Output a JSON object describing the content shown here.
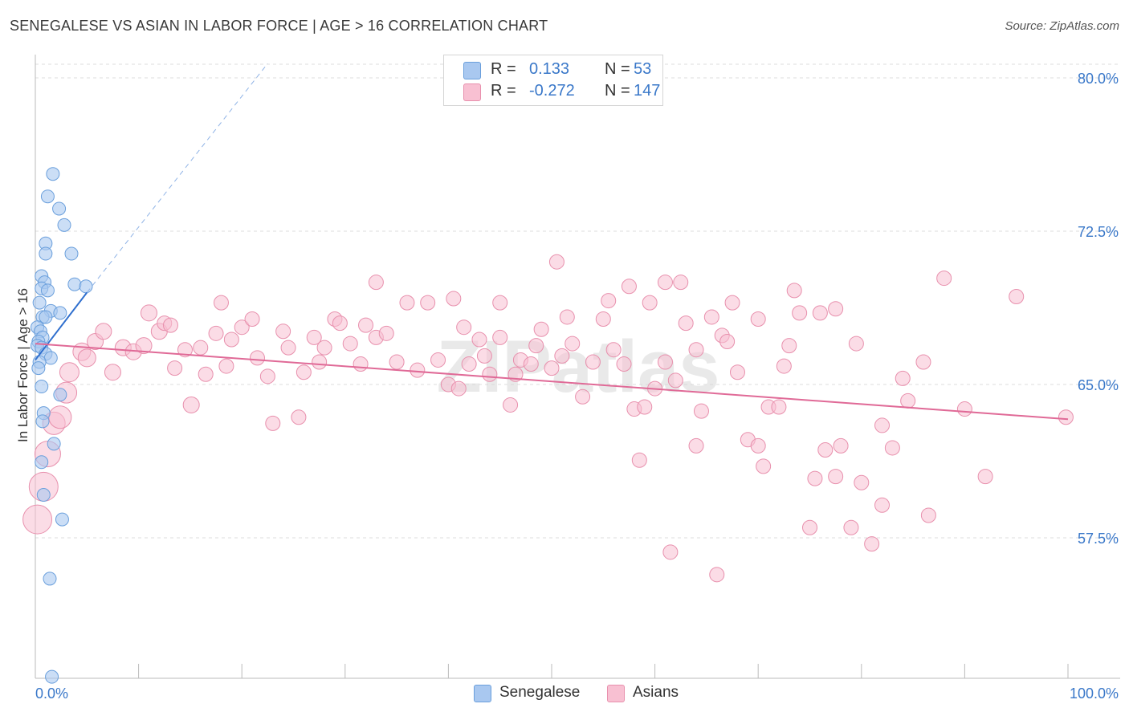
{
  "title": "SENEGALESE VS ASIAN IN LABOR FORCE | AGE > 16 CORRELATION CHART",
  "source": "Source: ZipAtlas.com",
  "watermark": "ZIPatlas",
  "legend": {
    "rows": [
      {
        "r_label": "R =",
        "r_value": "0.133",
        "n_label": "N =",
        "n_value": "53",
        "color": "#a9c8f0",
        "border": "#6a9fdc"
      },
      {
        "r_label": "R =",
        "r_value": "-0.272",
        "n_label": "N =",
        "n_value": "147",
        "color": "#f8c0d2",
        "border": "#e890ad"
      }
    ]
  },
  "bottom_legend": [
    {
      "label": "Senegalese",
      "color": "#a9c8f0",
      "border": "#6a9fdc"
    },
    {
      "label": "Asians",
      "color": "#f8c0d2",
      "border": "#e890ad"
    }
  ],
  "chart_data": {
    "type": "scatter",
    "title": "SENEGALESE VS ASIAN IN LABOR FORCE | AGE > 16 CORRELATION CHART",
    "xlabel": "",
    "ylabel": "In Labor Force | Age > 16",
    "xlim": [
      0,
      100
    ],
    "ylim": [
      50.0,
      82.0
    ],
    "x_tick_labels": [
      "0.0%",
      "100.0%"
    ],
    "y_ticks": [
      57.5,
      65.0,
      72.5,
      80.0
    ],
    "y_tick_labels": [
      "57.5%",
      "65.0%",
      "72.5%",
      "80.0%"
    ],
    "grid": true,
    "legend_position": "top-center",
    "colors": {
      "senegalese": "#6a9fdc",
      "asians": "#e890ad",
      "senegalese_line": "#2f6fce",
      "asians_line": "#e06a97",
      "tick_label": "#3a78c9"
    },
    "series": [
      {
        "name": "Senegalese",
        "trend": {
          "x0": 0,
          "y0": 66.2,
          "x1": 5,
          "y1": 69.5,
          "dashed_to_x": 22.5,
          "dashed_to_y": 80.7
        },
        "points": [
          {
            "x": 1.7,
            "y": 75.3
          },
          {
            "x": 1.2,
            "y": 74.2
          },
          {
            "x": 2.3,
            "y": 73.6
          },
          {
            "x": 2.8,
            "y": 72.8
          },
          {
            "x": 1.0,
            "y": 71.9
          },
          {
            "x": 1.0,
            "y": 71.4
          },
          {
            "x": 3.5,
            "y": 71.4
          },
          {
            "x": 0.6,
            "y": 70.3
          },
          {
            "x": 0.9,
            "y": 70.0
          },
          {
            "x": 3.8,
            "y": 69.9
          },
          {
            "x": 4.9,
            "y": 69.8
          },
          {
            "x": 0.6,
            "y": 69.7
          },
          {
            "x": 1.2,
            "y": 69.6
          },
          {
            "x": 0.4,
            "y": 69.0
          },
          {
            "x": 1.5,
            "y": 68.6
          },
          {
            "x": 2.4,
            "y": 68.5
          },
          {
            "x": 0.7,
            "y": 68.3
          },
          {
            "x": 1.0,
            "y": 68.3
          },
          {
            "x": 0.2,
            "y": 67.8
          },
          {
            "x": 0.5,
            "y": 67.6
          },
          {
            "x": 0.7,
            "y": 67.3
          },
          {
            "x": 0.3,
            "y": 67.1
          },
          {
            "x": 0.2,
            "y": 66.9
          },
          {
            "x": 0.6,
            "y": 66.8
          },
          {
            "x": 1.0,
            "y": 66.5
          },
          {
            "x": 1.5,
            "y": 66.3
          },
          {
            "x": 0.4,
            "y": 66.1
          },
          {
            "x": 0.3,
            "y": 65.8
          },
          {
            "x": 0.6,
            "y": 64.9
          },
          {
            "x": 2.4,
            "y": 64.5
          },
          {
            "x": 0.8,
            "y": 63.6
          },
          {
            "x": 0.7,
            "y": 63.2
          },
          {
            "x": 1.8,
            "y": 62.1
          },
          {
            "x": 0.6,
            "y": 61.2
          },
          {
            "x": 0.8,
            "y": 59.6
          },
          {
            "x": 2.6,
            "y": 58.4
          },
          {
            "x": 1.4,
            "y": 55.5
          },
          {
            "x": 1.6,
            "y": 50.7
          }
        ]
      },
      {
        "name": "Asians",
        "trend": {
          "x0": 0,
          "y0": 67.0,
          "x1": 100,
          "y1": 63.3
        },
        "points": [
          {
            "x": 0.2,
            "y": 58.4,
            "r": 18
          },
          {
            "x": 0.8,
            "y": 60.0,
            "r": 18
          },
          {
            "x": 1.2,
            "y": 61.6,
            "r": 16
          },
          {
            "x": 1.8,
            "y": 63.1,
            "r": 14
          },
          {
            "x": 2.4,
            "y": 63.4,
            "r": 14
          },
          {
            "x": 3.0,
            "y": 64.6,
            "r": 13
          },
          {
            "x": 3.3,
            "y": 65.6,
            "r": 12
          },
          {
            "x": 4.5,
            "y": 66.6,
            "r": 11
          },
          {
            "x": 5.0,
            "y": 66.3,
            "r": 11
          },
          {
            "x": 5.8,
            "y": 67.1,
            "r": 10
          },
          {
            "x": 6.6,
            "y": 67.6,
            "r": 10
          },
          {
            "x": 7.5,
            "y": 65.6,
            "r": 10
          },
          {
            "x": 8.5,
            "y": 66.8,
            "r": 10
          },
          {
            "x": 9.5,
            "y": 66.6,
            "r": 10
          },
          {
            "x": 10.5,
            "y": 66.9,
            "r": 10
          },
          {
            "x": 11.0,
            "y": 68.5,
            "r": 10
          },
          {
            "x": 12.0,
            "y": 67.6,
            "r": 10
          },
          {
            "x": 12.5,
            "y": 68.0,
            "r": 9
          },
          {
            "x": 13.1,
            "y": 67.9,
            "r": 9
          },
          {
            "x": 13.5,
            "y": 65.8,
            "r": 9
          },
          {
            "x": 14.5,
            "y": 66.7,
            "r": 9
          },
          {
            "x": 15.1,
            "y": 64.0,
            "r": 10
          },
          {
            "x": 16.0,
            "y": 66.8,
            "r": 9
          },
          {
            "x": 16.5,
            "y": 65.5,
            "r": 9
          },
          {
            "x": 17.5,
            "y": 67.5,
            "r": 9
          },
          {
            "x": 18.0,
            "y": 69.0,
            "r": 9
          },
          {
            "x": 18.5,
            "y": 65.9,
            "r": 9
          },
          {
            "x": 19.0,
            "y": 67.2,
            "r": 9
          },
          {
            "x": 20.0,
            "y": 67.8,
            "r": 9
          },
          {
            "x": 21.0,
            "y": 68.2,
            "r": 9
          },
          {
            "x": 21.5,
            "y": 66.3,
            "r": 9
          },
          {
            "x": 22.5,
            "y": 65.4,
            "r": 9
          },
          {
            "x": 23.0,
            "y": 63.1,
            "r": 9
          },
          {
            "x": 24.0,
            "y": 67.6,
            "r": 9
          },
          {
            "x": 24.5,
            "y": 66.8,
            "r": 9
          },
          {
            "x": 25.5,
            "y": 63.4,
            "r": 9
          },
          {
            "x": 26.0,
            "y": 65.6,
            "r": 9
          },
          {
            "x": 27.0,
            "y": 67.3,
            "r": 9
          },
          {
            "x": 27.5,
            "y": 66.1,
            "r": 9
          },
          {
            "x": 28.0,
            "y": 66.8,
            "r": 9
          },
          {
            "x": 29.0,
            "y": 68.2,
            "r": 9
          },
          {
            "x": 29.5,
            "y": 68.0,
            "r": 9
          },
          {
            "x": 30.5,
            "y": 67.0,
            "r": 9
          },
          {
            "x": 31.5,
            "y": 66.0,
            "r": 9
          },
          {
            "x": 32.0,
            "y": 67.9,
            "r": 9
          },
          {
            "x": 33.0,
            "y": 67.3,
            "r": 9
          },
          {
            "x": 34.0,
            "y": 67.5,
            "r": 9
          },
          {
            "x": 35.0,
            "y": 66.1,
            "r": 9
          },
          {
            "x": 36.0,
            "y": 69.0,
            "r": 9
          },
          {
            "x": 37.0,
            "y": 65.7,
            "r": 9
          },
          {
            "x": 38.0,
            "y": 69.0,
            "r": 9
          },
          {
            "x": 39.0,
            "y": 66.2,
            "r": 9
          },
          {
            "x": 40.0,
            "y": 65.0,
            "r": 9
          },
          {
            "x": 41.0,
            "y": 64.8,
            "r": 9
          },
          {
            "x": 41.5,
            "y": 67.8,
            "r": 9
          },
          {
            "x": 42.0,
            "y": 66.0,
            "r": 9
          },
          {
            "x": 43.0,
            "y": 67.2,
            "r": 9
          },
          {
            "x": 43.5,
            "y": 66.4,
            "r": 9
          },
          {
            "x": 44.0,
            "y": 65.5,
            "r": 9
          },
          {
            "x": 45.0,
            "y": 67.3,
            "r": 9
          },
          {
            "x": 46.0,
            "y": 64.0,
            "r": 9
          },
          {
            "x": 46.5,
            "y": 65.5,
            "r": 9
          },
          {
            "x": 47.0,
            "y": 66.2,
            "r": 9
          },
          {
            "x": 48.0,
            "y": 66.0,
            "r": 9
          },
          {
            "x": 48.5,
            "y": 66.9,
            "r": 9
          },
          {
            "x": 49.0,
            "y": 67.7,
            "r": 9
          },
          {
            "x": 50.0,
            "y": 65.8,
            "r": 9
          },
          {
            "x": 51.0,
            "y": 66.4,
            "r": 9
          },
          {
            "x": 51.5,
            "y": 68.3,
            "r": 9
          },
          {
            "x": 52.0,
            "y": 67.0,
            "r": 9
          },
          {
            "x": 53.0,
            "y": 64.4,
            "r": 9
          },
          {
            "x": 54.0,
            "y": 66.1,
            "r": 9
          },
          {
            "x": 55.0,
            "y": 68.2,
            "r": 9
          },
          {
            "x": 56.0,
            "y": 66.7,
            "r": 9
          },
          {
            "x": 57.0,
            "y": 66.0,
            "r": 9
          },
          {
            "x": 58.0,
            "y": 63.8,
            "r": 9
          },
          {
            "x": 58.5,
            "y": 61.3,
            "r": 9
          },
          {
            "x": 59.0,
            "y": 63.9,
            "r": 9
          },
          {
            "x": 60.0,
            "y": 64.8,
            "r": 9
          },
          {
            "x": 61.0,
            "y": 66.1,
            "r": 9
          },
          {
            "x": 62.0,
            "y": 65.2,
            "r": 9
          },
          {
            "x": 63.0,
            "y": 68.0,
            "r": 9
          },
          {
            "x": 64.0,
            "y": 66.7,
            "r": 9
          },
          {
            "x": 64.5,
            "y": 63.7,
            "r": 9
          },
          {
            "x": 65.5,
            "y": 68.3,
            "r": 9
          },
          {
            "x": 66.5,
            "y": 67.4,
            "r": 9
          },
          {
            "x": 67.0,
            "y": 67.1,
            "r": 9
          },
          {
            "x": 68.0,
            "y": 65.6,
            "r": 9
          },
          {
            "x": 69.0,
            "y": 62.3,
            "r": 9
          },
          {
            "x": 70.0,
            "y": 62.0,
            "r": 9
          },
          {
            "x": 70.5,
            "y": 61.0,
            "r": 9
          },
          {
            "x": 71.0,
            "y": 63.9,
            "r": 9
          },
          {
            "x": 72.5,
            "y": 65.9,
            "r": 9
          },
          {
            "x": 73.0,
            "y": 66.9,
            "r": 9
          },
          {
            "x": 74.0,
            "y": 68.5,
            "r": 9
          },
          {
            "x": 75.5,
            "y": 60.4,
            "r": 9
          },
          {
            "x": 76.5,
            "y": 61.8,
            "r": 9
          },
          {
            "x": 77.5,
            "y": 60.5,
            "r": 9
          },
          {
            "x": 78.0,
            "y": 62.0,
            "r": 9
          },
          {
            "x": 79.0,
            "y": 58.0,
            "r": 9
          },
          {
            "x": 80.0,
            "y": 60.2,
            "r": 9
          },
          {
            "x": 81.0,
            "y": 57.2,
            "r": 9
          },
          {
            "x": 82.0,
            "y": 59.1,
            "r": 9
          },
          {
            "x": 83.0,
            "y": 61.9,
            "r": 9
          },
          {
            "x": 84.0,
            "y": 65.3,
            "r": 9
          },
          {
            "x": 84.5,
            "y": 64.2,
            "r": 9
          },
          {
            "x": 86.5,
            "y": 58.6,
            "r": 9
          },
          {
            "x": 88.0,
            "y": 70.2,
            "r": 9
          },
          {
            "x": 90.0,
            "y": 63.8,
            "r": 9
          },
          {
            "x": 95.0,
            "y": 69.3,
            "r": 9
          },
          {
            "x": 99.8,
            "y": 63.4,
            "r": 9
          },
          {
            "x": 92.0,
            "y": 60.5,
            "r": 9
          },
          {
            "x": 86.0,
            "y": 66.1,
            "r": 9
          },
          {
            "x": 79.5,
            "y": 67.0,
            "r": 9
          },
          {
            "x": 72.0,
            "y": 63.9,
            "r": 9
          },
          {
            "x": 62.5,
            "y": 70.0,
            "r": 9
          },
          {
            "x": 57.5,
            "y": 69.8,
            "r": 9
          },
          {
            "x": 50.5,
            "y": 71.0,
            "r": 9
          },
          {
            "x": 55.5,
            "y": 69.1,
            "r": 9
          },
          {
            "x": 67.5,
            "y": 69.0,
            "r": 9
          },
          {
            "x": 70.0,
            "y": 68.2,
            "r": 9
          },
          {
            "x": 77.5,
            "y": 68.7,
            "r": 9
          },
          {
            "x": 33.0,
            "y": 70.0,
            "r": 9
          },
          {
            "x": 40.5,
            "y": 69.2,
            "r": 9
          },
          {
            "x": 45.0,
            "y": 69.0,
            "r": 9
          },
          {
            "x": 59.5,
            "y": 69.0,
            "r": 9
          },
          {
            "x": 61.0,
            "y": 70.0,
            "r": 9
          },
          {
            "x": 73.5,
            "y": 69.6,
            "r": 9
          },
          {
            "x": 76.0,
            "y": 68.5,
            "r": 9
          },
          {
            "x": 82.0,
            "y": 63.0,
            "r": 9
          },
          {
            "x": 66.0,
            "y": 55.7,
            "r": 9
          },
          {
            "x": 61.5,
            "y": 56.8,
            "r": 9
          },
          {
            "x": 75.0,
            "y": 58.0,
            "r": 9
          },
          {
            "x": 64.0,
            "y": 62.0,
            "r": 9
          }
        ]
      }
    ]
  }
}
